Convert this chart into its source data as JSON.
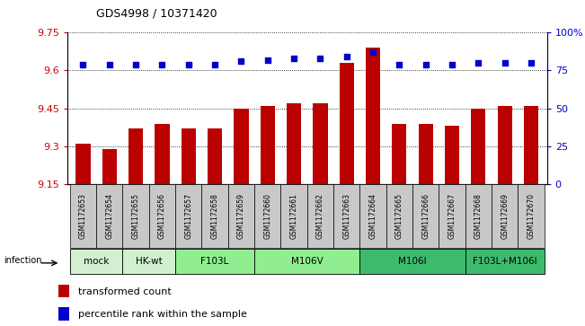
{
  "title": "GDS4998 / 10371420",
  "samples": [
    "GSM1172653",
    "GSM1172654",
    "GSM1172655",
    "GSM1172656",
    "GSM1172657",
    "GSM1172658",
    "GSM1172659",
    "GSM1172660",
    "GSM1172661",
    "GSM1172662",
    "GSM1172663",
    "GSM1172664",
    "GSM1172665",
    "GSM1172666",
    "GSM1172667",
    "GSM1172668",
    "GSM1172669",
    "GSM1172670"
  ],
  "bar_values": [
    9.31,
    9.29,
    9.37,
    9.39,
    9.37,
    9.37,
    9.45,
    9.46,
    9.47,
    9.47,
    9.63,
    9.69,
    9.39,
    9.39,
    9.38,
    9.45,
    9.46,
    9.46
  ],
  "dot_values": [
    79,
    79,
    79,
    79,
    79,
    79,
    81,
    82,
    83,
    83,
    84,
    87,
    79,
    79,
    79,
    80,
    80,
    80
  ],
  "ylim_left": [
    9.15,
    9.75
  ],
  "ylim_right": [
    0,
    100
  ],
  "yticks_left": [
    9.15,
    9.3,
    9.45,
    9.6,
    9.75
  ],
  "yticks_right": [
    0,
    25,
    50,
    75,
    100
  ],
  "ytick_labels_right": [
    "0",
    "25",
    "50",
    "75",
    "100%"
  ],
  "groups": [
    {
      "label": "mock",
      "start": 0,
      "end": 2,
      "color": "#d0f0d0"
    },
    {
      "label": "HK-wt",
      "start": 2,
      "end": 4,
      "color": "#d0f0d0"
    },
    {
      "label": "F103L",
      "start": 4,
      "end": 7,
      "color": "#90ee90"
    },
    {
      "label": "M106V",
      "start": 7,
      "end": 11,
      "color": "#90ee90"
    },
    {
      "label": "M106I",
      "start": 11,
      "end": 15,
      "color": "#3dbb6d"
    },
    {
      "label": "F103L+M106I",
      "start": 15,
      "end": 18,
      "color": "#3dbb6d"
    }
  ],
  "bar_color": "#bb0000",
  "dot_color": "#0000cc",
  "label_color_left": "#cc0000",
  "label_color_right": "#0000cc",
  "sample_box_color": "#c8c8c8",
  "infection_label": "infection",
  "legend1": "transformed count",
  "legend2": "percentile rank within the sample",
  "title_fontsize": 9,
  "axis_fontsize": 8,
  "sample_fontsize": 5.5,
  "group_fontsize": 7.5,
  "legend_fontsize": 8
}
